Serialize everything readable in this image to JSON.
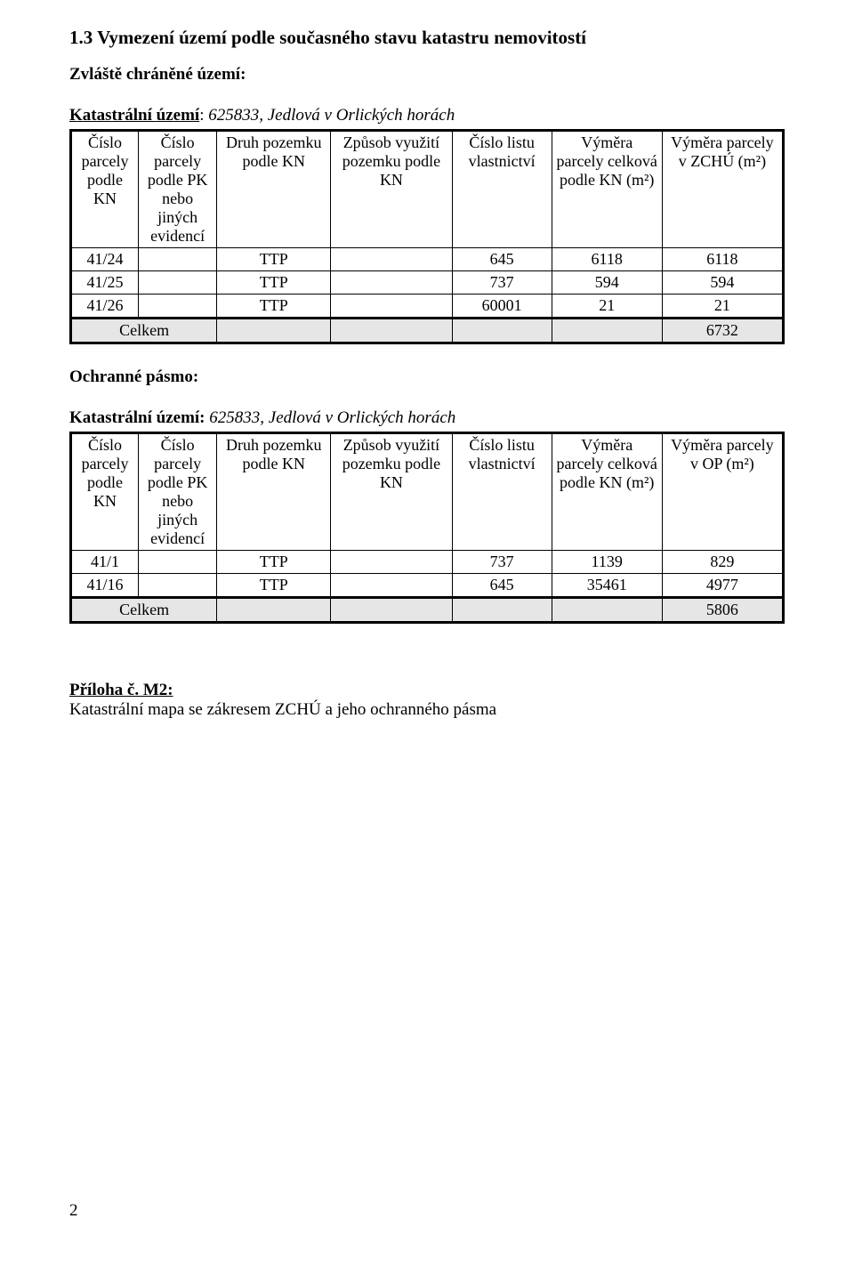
{
  "section_title": "1.3 Vymezení území podle současného stavu katastru nemovitostí",
  "zchu_label": "Zvláště chráněné území:",
  "ku_label": "Katastrální území",
  "ku_sep": ": ",
  "ku_value": "625833, Jedlová v Orlických horách",
  "headers": {
    "c0": "Číslo parcely podle KN",
    "c1": "Číslo parcely podle PK nebo jiných evidencí",
    "c2": "Druh pozemku podle KN",
    "c3": "Způsob využití pozemku podle KN",
    "c4": "Číslo listu vlastnictví",
    "c5": "Výměra parcely celková podle KN (m²)",
    "c6_zchu": "Výměra parcely v ZCHÚ (m²)",
    "c6_op": "Výměra parcely v OP (m²)"
  },
  "table_zchu": {
    "rows": [
      {
        "c0": "41/24",
        "c2": "TTP",
        "c4": "645",
        "c5": "6118",
        "c6": "6118"
      },
      {
        "c0": "41/25",
        "c2": "TTP",
        "c4": "737",
        "c5": "594",
        "c6": "594"
      },
      {
        "c0": "41/26",
        "c2": "TTP",
        "c4": "60001",
        "c5": "21",
        "c6": "21"
      }
    ],
    "total_label": "Celkem",
    "total_value": "6732"
  },
  "op_label": "Ochranné pásmo:",
  "ku2_label": "Katastrální území:",
  "ku2_value": "625833, Jedlová v Orlických horách",
  "table_op": {
    "rows": [
      {
        "c0": "41/1",
        "c2": "TTP",
        "c4": "737",
        "c5": "1139",
        "c6": "829"
      },
      {
        "c0": "41/16",
        "c2": "TTP",
        "c4": "645",
        "c5": "35461",
        "c6": "4977"
      }
    ],
    "total_label": "Celkem",
    "total_value": "5806"
  },
  "appendix_label": "Příloha č. M2:",
  "appendix_text": "Katastrální mapa se zákresem ZCHÚ a jeho ochranného pásma",
  "page_number": "2"
}
